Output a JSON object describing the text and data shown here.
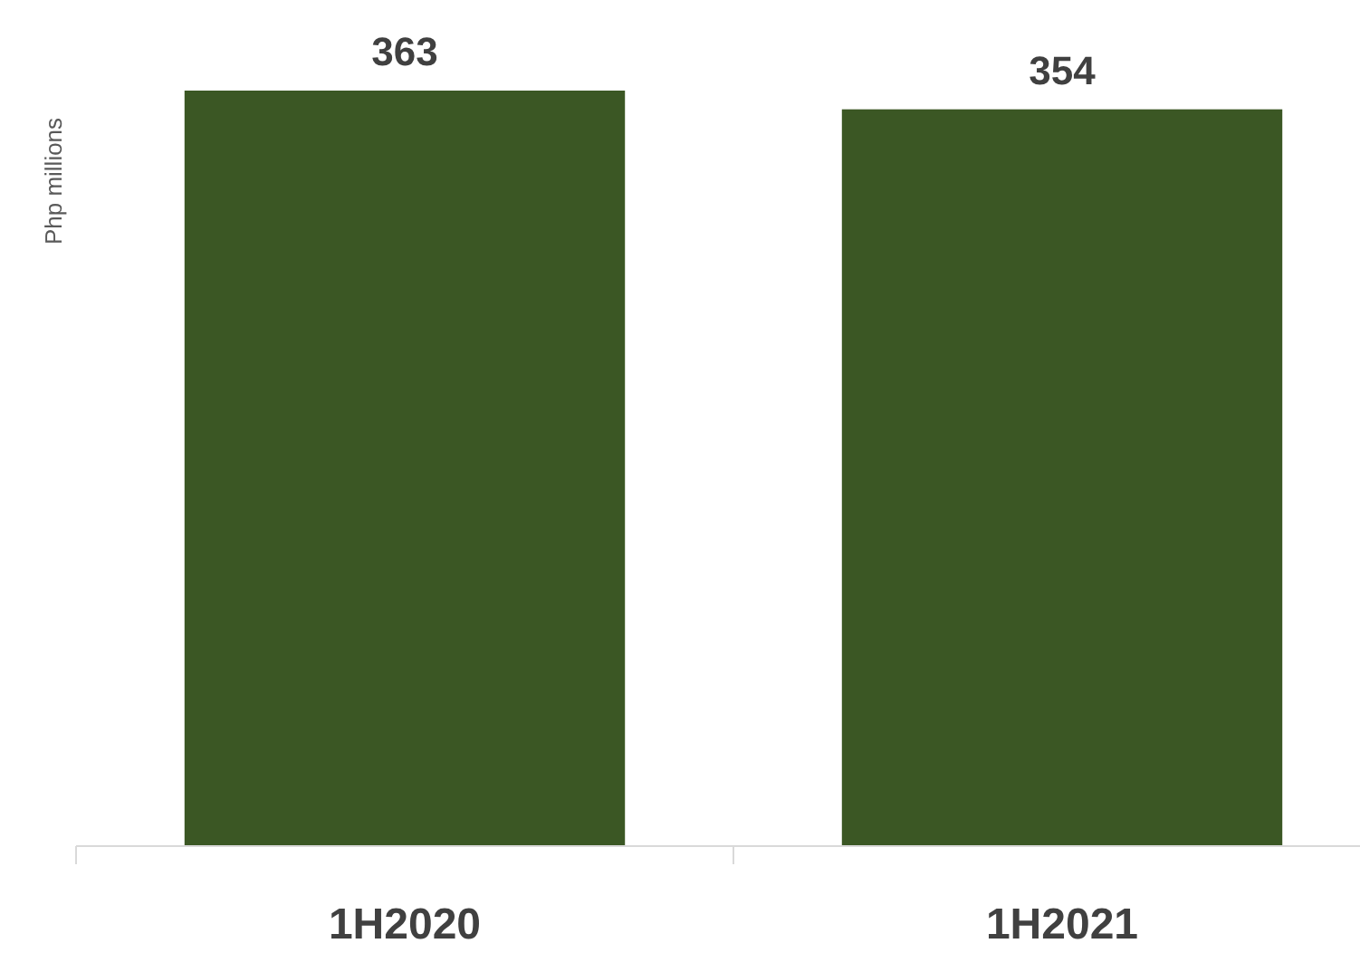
{
  "chart_data": {
    "type": "bar",
    "ylabel": "Php millions",
    "categories": [
      "1H2020",
      "1H2021"
    ],
    "values": [
      363,
      354
    ],
    "color": "#3b5724",
    "data_labels": true
  }
}
